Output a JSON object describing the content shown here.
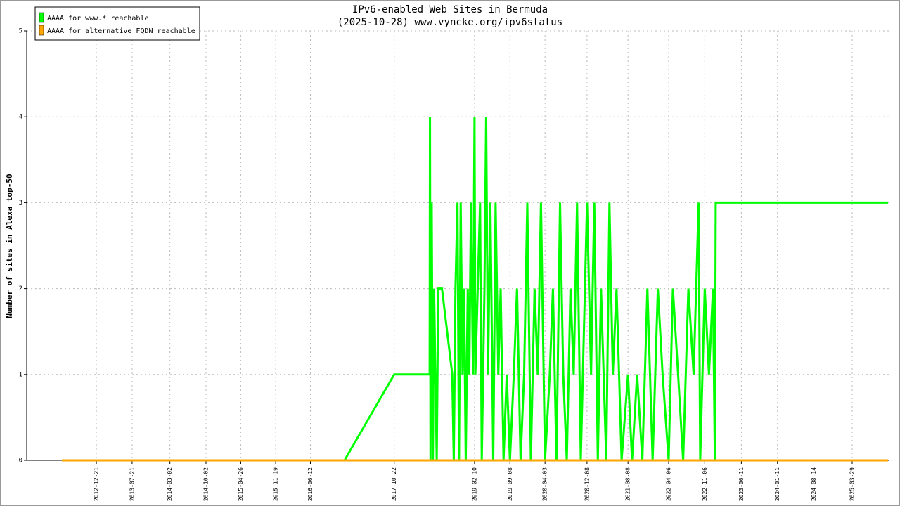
{
  "chart_data": {
    "type": "line",
    "title": "IPv6-enabled Web Sites in Bermuda",
    "subtitle": "(2025-10-28) www.vyncke.org/ipv6status",
    "y_label": "Number of sites in Alexa top-50",
    "xlim": [
      "2011-11-04",
      "2025-11-05"
    ],
    "xticks": [
      "2012-12-21",
      "2013-07-21",
      "2014-03-02",
      "2014-10-02",
      "2015-04-26",
      "2015-11-19",
      "2016-06-12",
      "2017-10-22",
      "2019-02-10",
      "2019-09-08",
      "2020-04-03",
      "2020-12-08",
      "2021-08-08",
      "2022-04-06",
      "2022-11-06",
      "2023-06-11",
      "2024-01-11",
      "2024-08-14",
      "2025-03-29"
    ],
    "ylim": [
      0,
      5
    ],
    "yticks": [
      0,
      1,
      2,
      3,
      4,
      5
    ],
    "grid": true,
    "legend": "top-left",
    "series": [
      {
        "name": "AAAA for www.* reachable",
        "color": "#00ff00",
        "x": [
          "2012-05-31",
          "2016-12-31",
          "2017-10-22",
          "2018-05-20",
          "2018-05-22",
          "2018-05-25",
          "2018-06-01",
          "2018-06-08",
          "2018-06-15",
          "2018-07-01",
          "2018-07-10",
          "2018-08-01",
          "2018-10-01",
          "2018-10-10",
          "2018-10-20",
          "2018-11-01",
          "2018-11-10",
          "2018-11-20",
          "2018-12-01",
          "2018-12-10",
          "2018-12-20",
          "2019-01-01",
          "2019-01-10",
          "2019-01-20",
          "2019-02-01",
          "2019-02-10",
          "2019-02-15",
          "2019-03-01",
          "2019-03-15",
          "2019-03-25",
          "2019-04-10",
          "2019-04-20",
          "2019-05-01",
          "2019-05-15",
          "2019-06-01",
          "2019-06-15",
          "2019-07-01",
          "2019-07-15",
          "2019-08-01",
          "2019-08-20",
          "2019-09-08",
          "2019-10-01",
          "2019-10-20",
          "2019-11-10",
          "2019-12-01",
          "2019-12-20",
          "2020-01-10",
          "2020-02-01",
          "2020-02-20",
          "2020-03-10",
          "2020-04-03",
          "2020-05-01",
          "2020-05-20",
          "2020-06-10",
          "2020-07-01",
          "2020-07-20",
          "2020-08-10",
          "2020-09-01",
          "2020-09-20",
          "2020-10-10",
          "2020-11-01",
          "2020-12-08",
          "2021-01-01",
          "2021-01-20",
          "2021-02-10",
          "2021-03-01",
          "2021-04-01",
          "2021-04-20",
          "2021-05-10",
          "2021-06-01",
          "2021-07-01",
          "2021-08-08",
          "2021-09-01",
          "2021-10-01",
          "2021-11-01",
          "2021-12-01",
          "2022-01-01",
          "2022-02-01",
          "2022-03-01",
          "2022-04-06",
          "2022-05-01",
          "2022-06-01",
          "2022-07-01",
          "2022-08-01",
          "2022-09-01",
          "2022-10-01",
          "2022-10-10",
          "2022-11-06",
          "2022-12-01",
          "2022-12-25",
          "2023-01-05",
          "2023-01-10",
          "2025-10-28"
        ],
        "values": [
          0,
          0,
          1,
          1,
          4,
          0,
          3,
          0,
          2,
          0,
          2,
          2,
          1,
          0,
          2,
          3,
          0,
          3,
          1,
          2,
          0,
          2,
          1,
          3,
          1,
          4,
          1,
          2,
          3,
          0,
          2,
          4,
          1,
          3,
          0,
          3,
          1,
          2,
          0,
          1,
          0,
          1,
          2,
          0,
          1,
          3,
          0,
          2,
          1,
          3,
          0,
          1,
          2,
          0,
          3,
          1,
          0,
          2,
          1,
          3,
          0,
          3,
          1,
          3,
          0,
          2,
          0,
          3,
          1,
          2,
          0,
          1,
          0,
          1,
          0,
          2,
          0,
          2,
          1,
          0,
          2,
          1,
          0,
          2,
          1,
          3,
          0,
          2,
          1,
          2,
          0,
          3,
          3
        ]
      },
      {
        "name": "AAAA for alternative FQDN reachable",
        "color": "#ffa500",
        "x": [
          "2012-05-31",
          "2025-10-28"
        ],
        "values": [
          0,
          0
        ]
      }
    ]
  }
}
